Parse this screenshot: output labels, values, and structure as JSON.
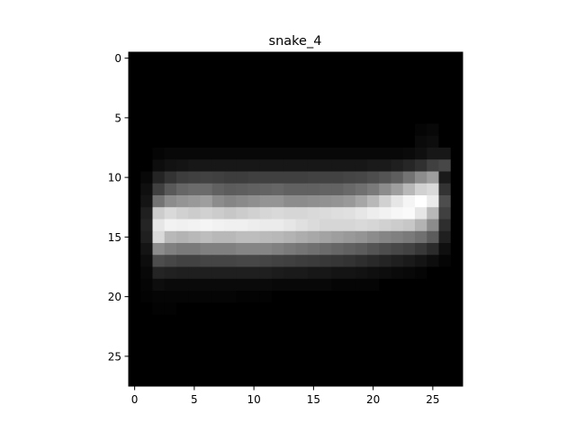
{
  "chart_data": {
    "type": "heatmap",
    "title": "snake_4",
    "xlabel": "",
    "ylabel": "",
    "colormap": "gray",
    "value_range": [
      0,
      1
    ],
    "rows": 28,
    "cols": 28,
    "x_ticks": [
      0,
      5,
      10,
      15,
      20,
      25
    ],
    "y_ticks": [
      0,
      5,
      10,
      15,
      20,
      25
    ],
    "xlim": [
      -0.5,
      27.5
    ],
    "ylim": [
      27.5,
      -0.5
    ],
    "background_value": 0.0,
    "rows_data": [
      {
        "row": 6,
        "start": 24,
        "values": [
          0.02,
          0.03
        ]
      },
      {
        "row": 7,
        "start": 24,
        "values": [
          0.04,
          0.05
        ]
      },
      {
        "row": 8,
        "start": 2,
        "values": [
          0.02,
          0.03,
          0.03,
          0.03,
          0.03,
          0.03,
          0.03,
          0.03,
          0.03,
          0.03,
          0.03,
          0.03,
          0.03,
          0.03,
          0.03,
          0.03,
          0.03,
          0.03,
          0.03,
          0.03,
          0.03,
          0.04,
          0.06,
          0.09,
          0.09
        ]
      },
      {
        "row": 9,
        "start": 2,
        "values": [
          0.05,
          0.07,
          0.08,
          0.09,
          0.09,
          0.09,
          0.09,
          0.09,
          0.09,
          0.09,
          0.09,
          0.09,
          0.09,
          0.09,
          0.09,
          0.09,
          0.09,
          0.09,
          0.1,
          0.1,
          0.12,
          0.15,
          0.19,
          0.25,
          0.28
        ]
      },
      {
        "row": 10,
        "start": 1,
        "values": [
          0.03,
          0.14,
          0.2,
          0.24,
          0.25,
          0.26,
          0.25,
          0.24,
          0.24,
          0.25,
          0.25,
          0.25,
          0.25,
          0.25,
          0.26,
          0.26,
          0.26,
          0.27,
          0.28,
          0.3,
          0.33,
          0.37,
          0.45,
          0.55,
          0.62,
          0.1
        ]
      },
      {
        "row": 11,
        "start": 1,
        "values": [
          0.06,
          0.25,
          0.35,
          0.4,
          0.42,
          0.42,
          0.38,
          0.36,
          0.37,
          0.38,
          0.39,
          0.4,
          0.38,
          0.38,
          0.38,
          0.39,
          0.39,
          0.41,
          0.44,
          0.48,
          0.55,
          0.62,
          0.72,
          0.82,
          0.85,
          0.2
        ]
      },
      {
        "row": 12,
        "start": 1,
        "values": [
          0.08,
          0.45,
          0.55,
          0.58,
          0.6,
          0.62,
          0.55,
          0.52,
          0.54,
          0.56,
          0.58,
          0.58,
          0.55,
          0.55,
          0.56,
          0.57,
          0.58,
          0.6,
          0.65,
          0.72,
          0.82,
          0.9,
          0.96,
          1.0,
          0.92,
          0.3
        ]
      },
      {
        "row": 13,
        "start": 1,
        "values": [
          0.12,
          0.8,
          0.85,
          0.82,
          0.8,
          0.82,
          0.8,
          0.78,
          0.8,
          0.82,
          0.84,
          0.85,
          0.84,
          0.84,
          0.85,
          0.86,
          0.87,
          0.88,
          0.9,
          0.93,
          0.95,
          0.97,
          0.98,
          0.9,
          0.72,
          0.25
        ]
      },
      {
        "row": 14,
        "start": 1,
        "values": [
          0.14,
          0.9,
          0.95,
          0.94,
          0.95,
          0.96,
          0.95,
          0.94,
          0.94,
          0.93,
          0.92,
          0.92,
          0.9,
          0.88,
          0.86,
          0.84,
          0.84,
          0.84,
          0.85,
          0.84,
          0.82,
          0.8,
          0.78,
          0.7,
          0.55,
          0.18
        ]
      },
      {
        "row": 15,
        "start": 1,
        "values": [
          0.12,
          0.85,
          0.72,
          0.7,
          0.72,
          0.74,
          0.72,
          0.72,
          0.74,
          0.74,
          0.73,
          0.72,
          0.7,
          0.68,
          0.66,
          0.64,
          0.62,
          0.6,
          0.58,
          0.55,
          0.52,
          0.5,
          0.48,
          0.44,
          0.36,
          0.12
        ]
      },
      {
        "row": 16,
        "start": 1,
        "values": [
          0.08,
          0.55,
          0.5,
          0.48,
          0.48,
          0.5,
          0.5,
          0.5,
          0.52,
          0.52,
          0.52,
          0.5,
          0.48,
          0.46,
          0.44,
          0.42,
          0.4,
          0.38,
          0.36,
          0.33,
          0.3,
          0.28,
          0.26,
          0.22,
          0.17,
          0.06
        ]
      },
      {
        "row": 17,
        "start": 1,
        "values": [
          0.05,
          0.3,
          0.28,
          0.26,
          0.26,
          0.27,
          0.27,
          0.27,
          0.28,
          0.28,
          0.27,
          0.26,
          0.25,
          0.24,
          0.23,
          0.22,
          0.21,
          0.2,
          0.18,
          0.16,
          0.14,
          0.12,
          0.1,
          0.08,
          0.05,
          0.02
        ]
      },
      {
        "row": 18,
        "start": 1,
        "values": [
          0.03,
          0.14,
          0.13,
          0.12,
          0.12,
          0.12,
          0.12,
          0.12,
          0.12,
          0.12,
          0.12,
          0.11,
          0.1,
          0.1,
          0.09,
          0.09,
          0.08,
          0.08,
          0.07,
          0.06,
          0.05,
          0.04,
          0.03,
          0.02
        ]
      },
      {
        "row": 19,
        "start": 1,
        "values": [
          0.02,
          0.05,
          0.04,
          0.04,
          0.04,
          0.04,
          0.04,
          0.04,
          0.04,
          0.04,
          0.04,
          0.03,
          0.03,
          0.03,
          0.03,
          0.03,
          0.02,
          0.02,
          0.02,
          0.02
        ]
      },
      {
        "row": 20,
        "start": 1,
        "values": [
          0.01,
          0.02,
          0.02,
          0.02,
          0.02,
          0.02,
          0.02,
          0.02,
          0.01,
          0.01,
          0.01
        ]
      },
      {
        "row": 21,
        "start": 2,
        "values": [
          0.01,
          0.01
        ]
      }
    ]
  }
}
